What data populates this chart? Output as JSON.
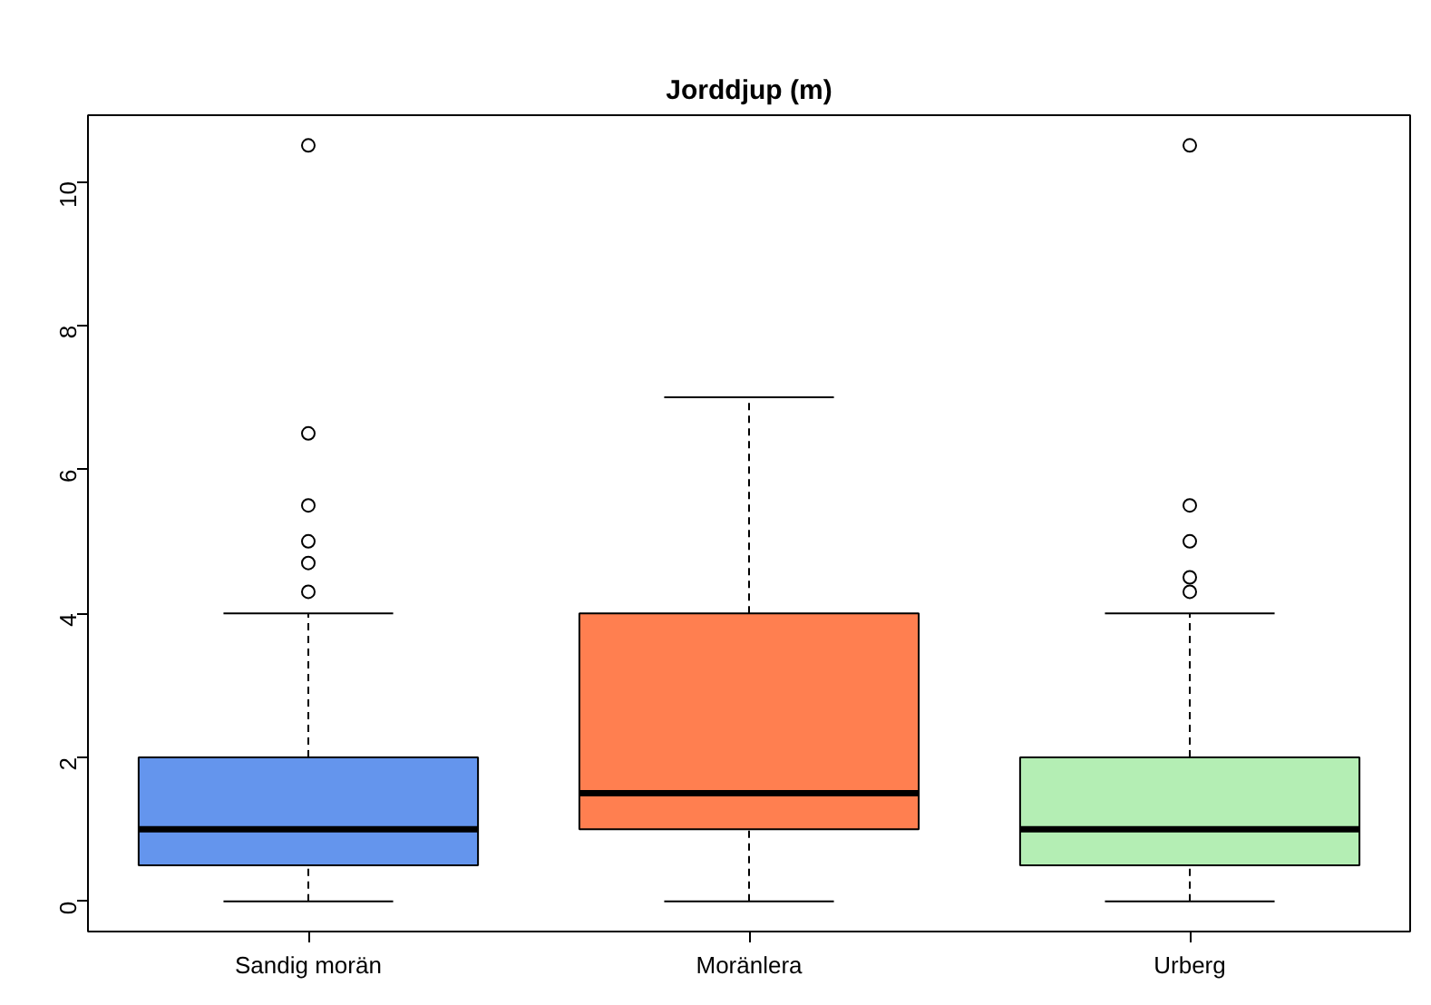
{
  "chart_data": {
    "type": "box",
    "title": "Jorddjup (m)",
    "categories": [
      "Sandig morän",
      "Moränlera",
      "Urberg"
    ],
    "colors": [
      "#6495ed",
      "#ff7f50",
      "#b4eeb4"
    ],
    "boxes": [
      {
        "low": 0,
        "q1": 0.5,
        "median": 1,
        "q3": 2,
        "high": 4,
        "outliers": [
          4.3,
          4.7,
          5.0,
          5.5,
          6.5,
          10.5
        ]
      },
      {
        "low": 0,
        "q1": 1,
        "median": 1.5,
        "q3": 4,
        "high": 7
      },
      {
        "low": 0,
        "q1": 0.5,
        "median": 1,
        "q3": 2,
        "high": 4,
        "outliers": [
          4.3,
          4.5,
          5.0,
          5.5,
          10.5
        ]
      }
    ],
    "ylim": [
      -0.42,
      10.92
    ],
    "yticks": [
      0,
      2,
      4,
      6,
      8,
      10
    ],
    "grid": false,
    "marker": "circle"
  }
}
